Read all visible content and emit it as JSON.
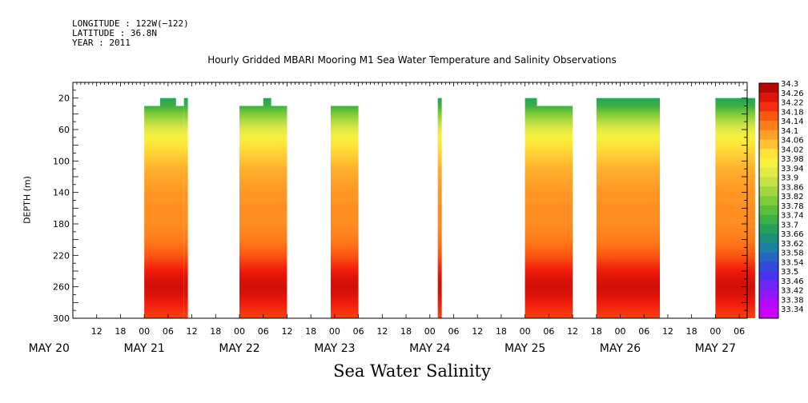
{
  "header": {
    "longitude": "LONGITUDE : 122W(−122)",
    "latitude": "LATITUDE : 36.8N",
    "year": "YEAR : 2011"
  },
  "chart_data": {
    "type": "heatmap",
    "title": "Hourly Gridded MBARI Mooring M1 Sea Water Temperature and Salinity Observations",
    "xlabel": "",
    "ylabel": "DEPTH (m)",
    "bottom_title": "Sea Water Salinity",
    "ylim": [
      300,
      0
    ],
    "y_ticks": [
      20,
      60,
      100,
      140,
      180,
      220,
      260,
      300
    ],
    "x_range_hours": [
      0,
      170
    ],
    "x_hour_ticks": [
      "12",
      "18",
      "00",
      "06",
      "12",
      "18",
      "00",
      "06",
      "12",
      "18",
      "00",
      "06",
      "12",
      "18",
      "00",
      "06",
      "12",
      "18",
      "00",
      "06",
      "12",
      "18",
      "00",
      "06",
      "12",
      "18",
      "00",
      "06"
    ],
    "date_labels": [
      "MAY 20",
      "MAY 21",
      "MAY 22",
      "MAY 23",
      "MAY 24",
      "MAY 25",
      "MAY 26",
      "MAY 27"
    ],
    "depths": [
      20,
      30,
      40,
      50,
      60,
      70,
      80,
      90,
      100,
      110,
      120,
      130,
      140,
      150,
      160,
      170,
      180,
      190,
      200,
      210,
      220,
      230,
      240,
      250,
      260,
      270,
      280,
      290,
      300
    ],
    "profile": [
      33.68,
      33.72,
      33.8,
      33.86,
      33.92,
      33.96,
      34.0,
      34.02,
      34.04,
      34.06,
      34.07,
      34.08,
      34.09,
      34.09,
      34.1,
      34.1,
      34.1,
      34.11,
      34.12,
      34.14,
      34.16,
      34.19,
      34.22,
      34.24,
      34.25,
      34.24,
      34.22,
      34.2,
      34.18
    ],
    "segments": [
      {
        "start_time": "2011-05-21 00:00",
        "end_time": "2011-05-21 10:00",
        "top_depth": 30,
        "notches": [
          {
            "from": "2011-05-21 04:00",
            "to": "2011-05-21 08:00",
            "top_depth": 20
          },
          {
            "from": "2011-05-21 10:00",
            "to": "2011-05-21 11:00",
            "top_depth": 20
          }
        ],
        "extra_end": "2011-05-21 11:00"
      },
      {
        "start_time": "2011-05-22 00:00",
        "end_time": "2011-05-22 12:00",
        "top_depth": 30,
        "notches": [
          {
            "from": "2011-05-22 06:00",
            "to": "2011-05-22 08:00",
            "top_depth": 20
          }
        ]
      },
      {
        "start_time": "2011-05-22 23:00",
        "end_time": "2011-05-23 06:00",
        "top_depth": 30,
        "notches": []
      },
      {
        "start_time": "2011-05-24 02:00",
        "end_time": "2011-05-24 03:00",
        "top_depth": 20,
        "notches": []
      },
      {
        "start_time": "2011-05-25 00:00",
        "end_time": "2011-05-25 12:00",
        "top_depth": 30,
        "notches": [
          {
            "from": "2011-05-25 00:00",
            "to": "2011-05-25 03:00",
            "top_depth": 20
          }
        ]
      },
      {
        "start_time": "2011-05-25 18:00",
        "end_time": "2011-05-26 10:00",
        "top_depth": 20,
        "notches": []
      },
      {
        "start_time": "2011-05-27 00:00",
        "end_time": "2011-05-27 10:00",
        "top_depth": 20,
        "notches": []
      }
    ],
    "legend_levels": [
      "34.3",
      "34.26",
      "34.22",
      "34.18",
      "34.14",
      "34.1",
      "34.06",
      "34.02",
      "33.98",
      "33.94",
      "33.9",
      "33.86",
      "33.82",
      "33.78",
      "33.74",
      "33.7",
      "33.66",
      "33.62",
      "33.58",
      "33.54",
      "33.5",
      "33.46",
      "33.42",
      "33.38",
      "33.34"
    ],
    "colormap": [
      {
        "value": 33.34,
        "color": "#cc00ff"
      },
      {
        "value": 33.42,
        "color": "#7f1fff"
      },
      {
        "value": 33.5,
        "color": "#3a3ae8"
      },
      {
        "value": 33.58,
        "color": "#1f78b4"
      },
      {
        "value": 33.66,
        "color": "#1a9966"
      },
      {
        "value": 33.74,
        "color": "#49b83a"
      },
      {
        "value": 33.82,
        "color": "#8fd13a"
      },
      {
        "value": 33.9,
        "color": "#d8e64a"
      },
      {
        "value": 33.98,
        "color": "#fff53a"
      },
      {
        "value": 34.06,
        "color": "#ffb02e"
      },
      {
        "value": 34.14,
        "color": "#ff6a14"
      },
      {
        "value": 34.22,
        "color": "#f01a0c"
      },
      {
        "value": 34.3,
        "color": "#9e0000"
      }
    ]
  }
}
